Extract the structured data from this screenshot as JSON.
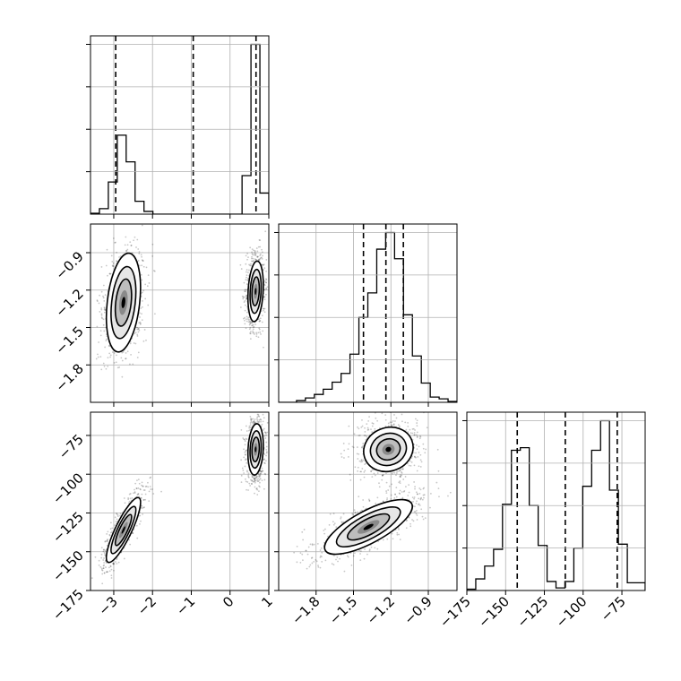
{
  "chart_data": {
    "type": "corner",
    "description_free": true,
    "parameters": [
      {
        "range": [
          -3.6,
          1.0
        ],
        "ticks": [
          -3,
          -2,
          -1,
          0,
          1
        ],
        "tick_labels": [
          "−3",
          "−2",
          "−1",
          "0",
          "1"
        ]
      },
      {
        "range": [
          -2.1,
          -0.67
        ],
        "ticks": [
          -1.8,
          -1.5,
          -1.2,
          -0.9
        ],
        "tick_labels": [
          "−1.8",
          "−1.5",
          "−1.2",
          "−0.9"
        ]
      },
      {
        "range": [
          -175,
          -60
        ],
        "ticks": [
          -175,
          -150,
          -125,
          -100,
          -75
        ],
        "tick_labels": [
          "−175",
          "−150",
          "−125",
          "−100",
          "−75"
        ]
      }
    ],
    "quantiles": [
      [
        -2.95,
        -0.95,
        0.67
      ],
      [
        -1.42,
        -1.24,
        -1.1
      ],
      [
        -142.5,
        -111.5,
        -78.0
      ]
    ],
    "histograms": [
      {
        "bin_edges": [
          -3.6,
          -3.37,
          -3.14,
          -2.91,
          -2.68,
          -2.45,
          -2.22,
          -1.99,
          -1.76,
          -1.53,
          -1.3,
          -1.07,
          -0.84,
          -0.61,
          -0.38,
          -0.15,
          0.08,
          0.31,
          0.54,
          0.77,
          1.0
        ],
        "counts": [
          1,
          6,
          35,
          86,
          57,
          14,
          3,
          0,
          0,
          0,
          0,
          0,
          0,
          0,
          0,
          0,
          0,
          42,
          185,
          23
        ]
      },
      {
        "bin_edges": [
          -2.1,
          -2.0285,
          -1.957,
          -1.8855,
          -1.814,
          -1.7425,
          -1.671,
          -1.5995,
          -1.528,
          -1.4565,
          -1.385,
          -1.3135,
          -1.242,
          -1.1705,
          -1.099,
          -1.0275,
          -0.956,
          -0.8845,
          -0.813,
          -0.7415,
          -0.67
        ],
        "counts": [
          0,
          0,
          2,
          5,
          9,
          15,
          23,
          33,
          55,
          97,
          125,
          175,
          194,
          164,
          100,
          53,
          22,
          6,
          4,
          1
        ]
      },
      {
        "bin_edges": [
          -175,
          -169.25,
          -163.5,
          -157.75,
          -152,
          -146.25,
          -140.5,
          -134.75,
          -129,
          -123.25,
          -117.5,
          -111.75,
          -106,
          -100.25,
          -94.5,
          -88.75,
          -83,
          -77.25,
          -71.5,
          -65.75,
          -60
        ],
        "counts": [
          1,
          9,
          19,
          32,
          67,
          109,
          111,
          66,
          35,
          7,
          2,
          7,
          33,
          81,
          109,
          132,
          78,
          36,
          6,
          6
        ]
      }
    ],
    "density_modes": [
      {
        "pair": [
          0,
          1
        ],
        "blobs": [
          {
            "center": [
              -2.75,
              -1.3
            ],
            "sd": [
              0.2,
              0.18
            ],
            "rho": 0.3,
            "weight": 0.45
          },
          {
            "center": [
              0.66,
              -1.21
            ],
            "sd": [
              0.09,
              0.11
            ],
            "rho": 0.2,
            "weight": 0.55
          }
        ]
      },
      {
        "pair": [
          0,
          2
        ],
        "blobs": [
          {
            "center": [
              -2.75,
              -136
            ],
            "sd": [
              0.2,
              9.5
            ],
            "rho": 0.85,
            "weight": 0.45
          },
          {
            "center": [
              0.66,
              -84
            ],
            "sd": [
              0.09,
              7.5
            ],
            "rho": 0.15,
            "weight": 0.55
          }
        ]
      },
      {
        "pair": [
          1,
          2
        ],
        "blobs": [
          {
            "center": [
              -1.38,
              -134
            ],
            "sd": [
              0.16,
              8.0
            ],
            "rho": 0.75,
            "weight": 0.45
          },
          {
            "center": [
              -1.22,
              -84
            ],
            "sd": [
              0.09,
              6.5
            ],
            "rho": 0.1,
            "weight": 0.55
          }
        ]
      }
    ],
    "grid": true,
    "xlabel": "",
    "ylabel": "",
    "title": ""
  }
}
